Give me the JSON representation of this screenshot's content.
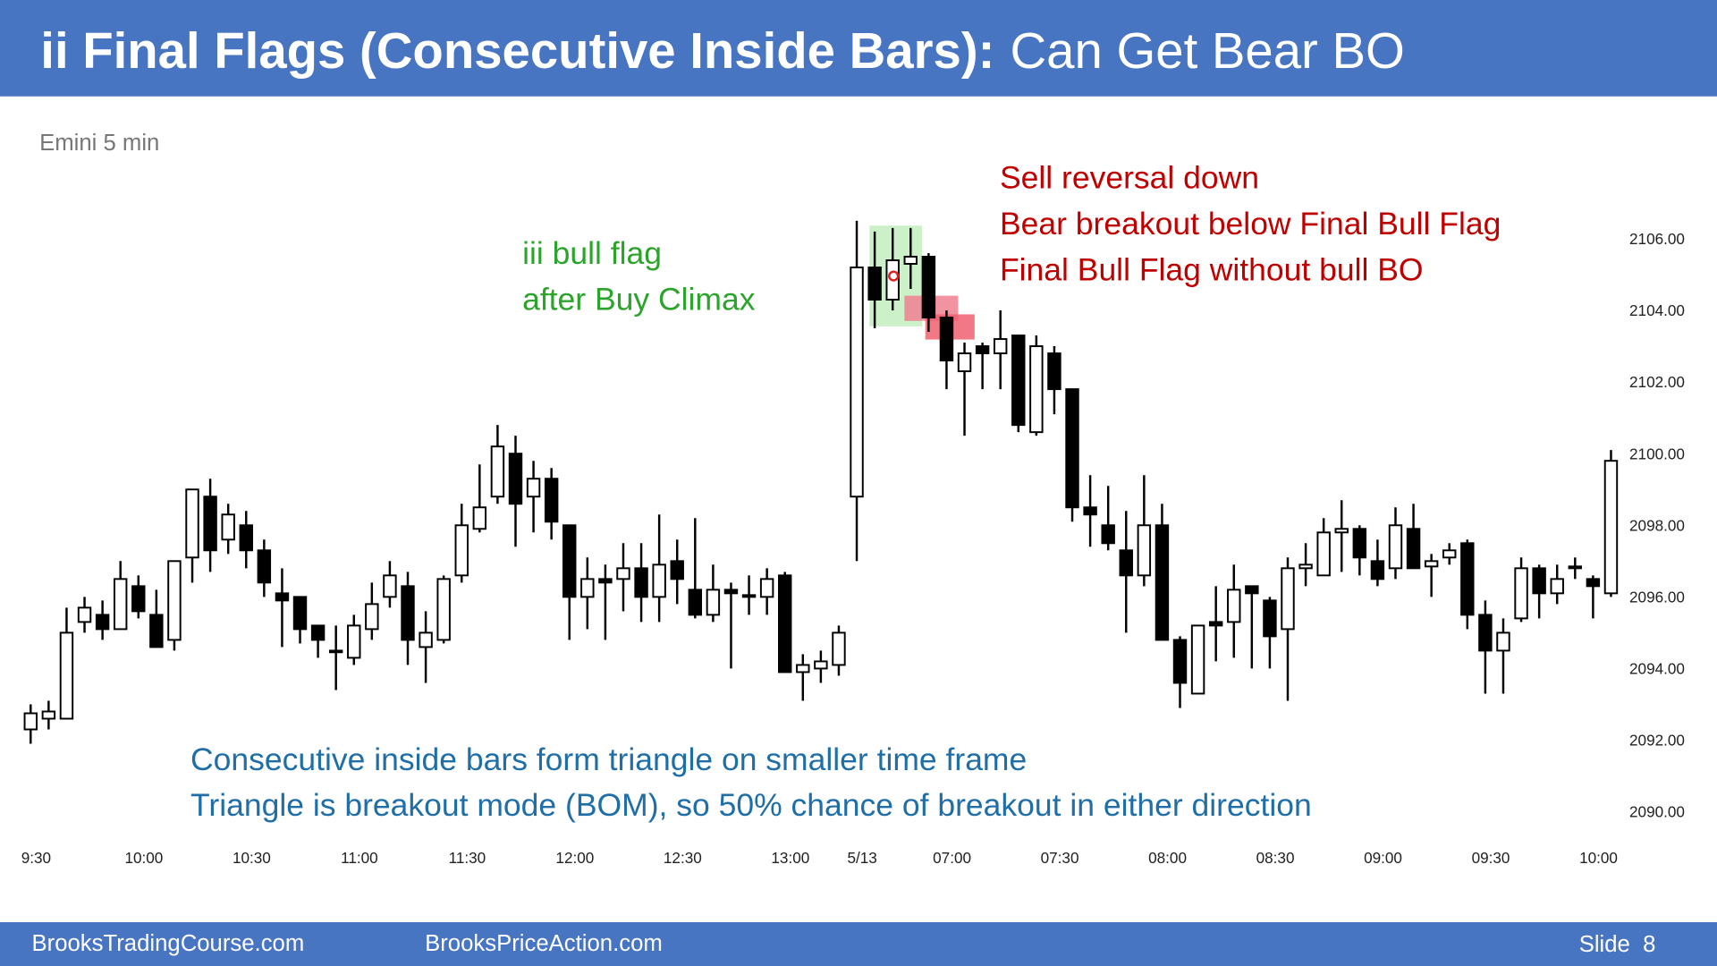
{
  "slide": {
    "title_bold": "ii Final Flags (Consecutive Inside Bars):",
    "title_rest": "Can Get Bear BO",
    "footer_left": "BrooksTradingCourse.com",
    "footer_mid": "BrooksPriceAction.com",
    "footer_right": "Slide  8"
  },
  "chart_data": {
    "type": "candlestick",
    "subtitle": "Emini 5 min",
    "up_color": "#ffffff",
    "down_color": "#000000",
    "grid": false,
    "ylim": [
      2089.5,
      2107
    ],
    "yticks": [
      {
        "value": 2106,
        "label": "2106.00"
      },
      {
        "value": 2104,
        "label": "2104.00"
      },
      {
        "value": 2102,
        "label": "2102.00"
      },
      {
        "value": 2100,
        "label": "2100.00"
      },
      {
        "value": 2098,
        "label": "2098.00"
      },
      {
        "value": 2096,
        "label": "2096.00"
      },
      {
        "value": 2094,
        "label": "2094.00"
      },
      {
        "value": 2092,
        "label": "2092.00"
      },
      {
        "value": 2090,
        "label": "2090.00"
      }
    ],
    "categories": [
      "9:30",
      null,
      null,
      null,
      null,
      null,
      "10:00",
      null,
      null,
      null,
      null,
      null,
      "10:30",
      null,
      null,
      null,
      null,
      null,
      "11:00",
      null,
      null,
      null,
      null,
      null,
      "11:30",
      null,
      null,
      null,
      null,
      null,
      "12:00",
      null,
      null,
      null,
      null,
      null,
      "12:30",
      null,
      null,
      null,
      null,
      null,
      "13:00",
      null,
      null,
      null,
      "5/13",
      null,
      null,
      null,
      null,
      "07:00",
      null,
      null,
      null,
      null,
      null,
      "07:30",
      null,
      null,
      null,
      null,
      null,
      "08:00",
      null,
      null,
      null,
      null,
      null,
      "08:30",
      null,
      null,
      null,
      null,
      null,
      "09:00",
      null,
      null,
      null,
      null,
      null,
      "09:30",
      null,
      null,
      null,
      null,
      null,
      "10:00",
      null
    ],
    "open": [
      2092.3,
      2092.6,
      2092.6,
      2095.3,
      2095.5,
      2095.1,
      2096.3,
      2095.5,
      2094.8,
      2097.1,
      2098.8,
      2097.6,
      2098.0,
      2097.3,
      2096.1,
      2096.0,
      2095.2,
      2094.5,
      2094.3,
      2095.1,
      2096.0,
      2096.3,
      2094.6,
      2094.8,
      2096.6,
      2097.9,
      2098.8,
      2100.0,
      2098.8,
      2099.3,
      2098.0,
      2096.0,
      2096.5,
      2096.5,
      2096.8,
      2096.0,
      2097.0,
      2096.2,
      2095.5,
      2096.2,
      2096.0,
      2096.0,
      2096.6,
      2093.9,
      2094.0,
      2094.1,
      2098.8,
      2105.2,
      2104.3,
      2105.3,
      2105.5,
      2103.8,
      2102.3,
      2103.0,
      2102.8,
      2103.3,
      2100.6,
      2102.8,
      2101.8,
      2098.5,
      2098.0,
      2097.3,
      2096.6,
      2098.0,
      2094.8,
      2093.3,
      2095.3,
      2095.3,
      2096.3,
      2095.9,
      2095.1,
      2096.8,
      2096.6,
      2097.8,
      2097.9,
      2097.0,
      2096.8,
      2097.9,
      2096.85,
      2097.1,
      2097.5,
      2095.5,
      2094.5,
      2095.4,
      2096.8,
      2096.1,
      2096.8,
      2096.5,
      2096.1
    ],
    "high": [
      2093.0,
      2093.1,
      2095.7,
      2096.0,
      2095.9,
      2097.0,
      2096.6,
      2096.2,
      2097.0,
      2099.0,
      2099.3,
      2098.6,
      2098.4,
      2097.6,
      2096.8,
      2096.0,
      2095.2,
      2095.2,
      2095.5,
      2096.4,
      2097.0,
      2096.7,
      2095.6,
      2096.6,
      2098.6,
      2099.7,
      2100.8,
      2100.5,
      2099.8,
      2099.6,
      2098.0,
      2097.1,
      2096.9,
      2097.5,
      2097.5,
      2098.3,
      2097.6,
      2098.2,
      2096.9,
      2096.4,
      2096.6,
      2096.8,
      2096.7,
      2094.4,
      2094.5,
      2095.2,
      2106.5,
      2106.2,
      2106.3,
      2106.3,
      2105.6,
      2104.0,
      2103.1,
      2103.1,
      2104.0,
      2103.3,
      2103.3,
      2103.0,
      2101.8,
      2099.4,
      2099.1,
      2098.4,
      2099.4,
      2098.6,
      2094.9,
      2095.2,
      2096.3,
      2096.9,
      2096.3,
      2096.0,
      2097.1,
      2097.5,
      2098.2,
      2098.7,
      2098.0,
      2097.6,
      2098.5,
      2098.6,
      2097.2,
      2097.5,
      2097.6,
      2095.9,
      2095.4,
      2097.1,
      2096.9,
      2096.9,
      2097.1,
      2096.6,
      2100.1
    ],
    "low": [
      2091.9,
      2092.3,
      2092.6,
      2095.0,
      2094.8,
      2095.1,
      2095.4,
      2094.6,
      2094.5,
      2096.4,
      2096.7,
      2097.2,
      2096.8,
      2096.0,
      2094.6,
      2094.7,
      2094.3,
      2093.4,
      2094.1,
      2094.8,
      2095.7,
      2094.1,
      2093.6,
      2094.7,
      2096.4,
      2097.8,
      2098.6,
      2097.4,
      2097.8,
      2097.6,
      2094.8,
      2095.1,
      2094.8,
      2095.6,
      2095.3,
      2095.3,
      2095.8,
      2095.4,
      2095.3,
      2094.0,
      2095.5,
      2095.5,
      2093.9,
      2093.1,
      2093.6,
      2093.8,
      2097.0,
      2103.5,
      2104.0,
      2104.6,
      2103.4,
      2101.8,
      2100.5,
      2101.8,
      2101.8,
      2100.6,
      2100.5,
      2101.1,
      2098.1,
      2097.4,
      2097.3,
      2095.0,
      2096.3,
      2094.8,
      2092.9,
      2093.3,
      2094.2,
      2094.3,
      2094.0,
      2094.0,
      2093.1,
      2096.3,
      2096.6,
      2096.7,
      2096.6,
      2096.3,
      2096.5,
      2096.8,
      2096.0,
      2096.9,
      2095.1,
      2093.3,
      2093.3,
      2095.3,
      2095.4,
      2095.8,
      2096.5,
      2095.4,
      2096.0
    ],
    "close": [
      2092.75,
      2092.8,
      2095.0,
      2095.7,
      2095.1,
      2096.5,
      2095.6,
      2094.6,
      2097.0,
      2099.0,
      2097.3,
      2098.3,
      2097.3,
      2096.4,
      2095.9,
      2095.1,
      2094.8,
      2094.5,
      2095.2,
      2095.8,
      2096.6,
      2094.8,
      2095.0,
      2096.5,
      2098.0,
      2098.5,
      2100.2,
      2098.6,
      2099.3,
      2098.1,
      2096.0,
      2096.5,
      2096.4,
      2096.8,
      2096.0,
      2096.9,
      2096.5,
      2095.5,
      2096.2,
      2096.1,
      2096.05,
      2096.5,
      2093.9,
      2094.1,
      2094.2,
      2095.0,
      2105.2,
      2104.3,
      2105.4,
      2105.5,
      2103.8,
      2102.6,
      2102.8,
      2102.8,
      2103.2,
      2100.8,
      2103.0,
      2101.8,
      2098.5,
      2098.3,
      2097.5,
      2096.6,
      2098.0,
      2094.8,
      2093.6,
      2095.2,
      2095.2,
      2096.2,
      2096.1,
      2094.9,
      2096.8,
      2096.9,
      2097.8,
      2097.9,
      2097.1,
      2096.5,
      2098.0,
      2096.8,
      2097.0,
      2097.3,
      2095.5,
      2094.5,
      2095.0,
      2096.8,
      2096.1,
      2096.5,
      2096.85,
      2096.3,
      2099.8
    ],
    "annotations": [
      {
        "lines": [
          "iii bull flag",
          "after Buy Climax"
        ],
        "color": "#2ca42c"
      },
      {
        "lines": [
          "Sell reversal down",
          "Bear breakout below Final Bull Flag",
          "Final Bull Flag without bull BO"
        ],
        "color": "#c00000"
      },
      {
        "lines": [
          "Consecutive inside bars form triangle on smaller time frame",
          "Triangle is breakout mode (BOM), so 50% chance of breakout in either direction"
        ],
        "color": "#1f6ea8"
      }
    ]
  }
}
